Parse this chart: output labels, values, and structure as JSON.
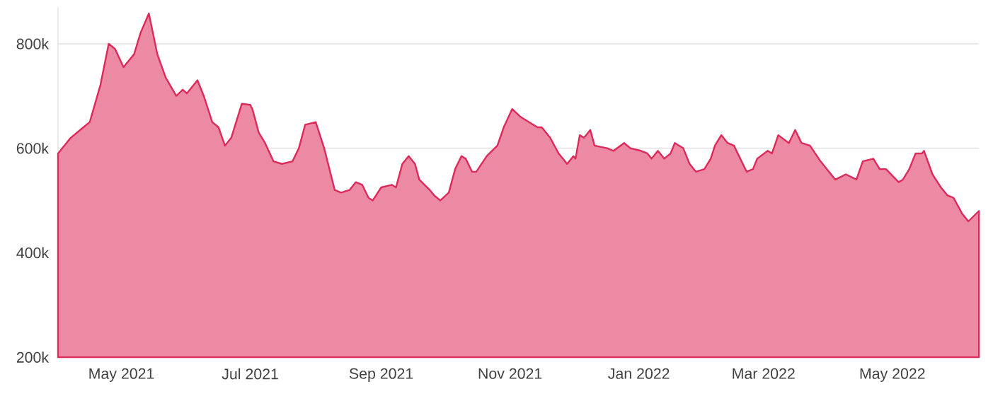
{
  "chart_data": {
    "type": "area",
    "xlim": [
      "2021-04-01",
      "2022-06-11"
    ],
    "ylim": [
      200000,
      870000
    ],
    "xticks": [
      {
        "value": "2021-05-01",
        "label": "May 2021"
      },
      {
        "value": "2021-07-01",
        "label": "Jul 2021"
      },
      {
        "value": "2021-09-01",
        "label": "Sep 2021"
      },
      {
        "value": "2021-11-01",
        "label": "Nov 2021"
      },
      {
        "value": "2022-01-01",
        "label": "Jan 2022"
      },
      {
        "value": "2022-03-01",
        "label": "Mar 2022"
      },
      {
        "value": "2022-05-01",
        "label": "May 2022"
      }
    ],
    "yticks": [
      {
        "value": 200000,
        "label": "200k"
      },
      {
        "value": 400000,
        "label": "400k"
      },
      {
        "value": 600000,
        "label": "600k"
      },
      {
        "value": 800000,
        "label": "800k"
      }
    ],
    "grid": "y",
    "x": [
      "2021-04-01",
      "2021-04-07",
      "2021-04-13",
      "2021-04-16",
      "2021-04-21",
      "2021-04-25",
      "2021-04-28",
      "2021-05-02",
      "2021-05-07",
      "2021-05-10",
      "2021-05-14",
      "2021-05-18",
      "2021-05-22",
      "2021-05-27",
      "2021-05-30",
      "2021-06-01",
      "2021-06-06",
      "2021-06-09",
      "2021-06-13",
      "2021-06-16",
      "2021-06-19",
      "2021-06-22",
      "2021-06-27",
      "2021-07-01",
      "2021-07-02",
      "2021-07-05",
      "2021-07-08",
      "2021-07-12",
      "2021-07-16",
      "2021-07-21",
      "2021-07-24",
      "2021-07-27",
      "2021-08-01",
      "2021-08-05",
      "2021-08-10",
      "2021-08-13",
      "2021-08-17",
      "2021-08-20",
      "2021-08-23",
      "2021-08-26",
      "2021-08-28",
      "2021-09-01",
      "2021-09-06",
      "2021-09-08",
      "2021-09-11",
      "2021-09-14",
      "2021-09-17",
      "2021-09-19",
      "2021-09-24",
      "2021-09-26",
      "2021-09-29",
      "2021-10-03",
      "2021-10-06",
      "2021-10-09",
      "2021-10-11",
      "2021-10-14",
      "2021-10-16",
      "2021-10-21",
      "2021-10-26",
      "2021-10-29",
      "2021-11-02",
      "2021-11-06",
      "2021-11-10",
      "2021-11-14",
      "2021-11-16",
      "2021-11-20",
      "2021-11-24",
      "2021-11-26",
      "2021-11-28",
      "2021-12-01",
      "2021-12-02",
      "2021-12-04",
      "2021-12-06",
      "2021-12-09",
      "2021-12-11",
      "2021-12-17",
      "2021-12-20",
      "2021-12-25",
      "2021-12-28",
      "2022-01-02",
      "2022-01-05",
      "2022-01-07",
      "2022-01-10",
      "2022-01-13",
      "2022-01-16",
      "2022-01-18",
      "2022-01-22",
      "2022-01-25",
      "2022-01-28",
      "2022-02-01",
      "2022-02-04",
      "2022-02-06",
      "2022-02-09",
      "2022-02-12",
      "2022-02-15",
      "2022-02-18",
      "2022-02-21",
      "2022-02-24",
      "2022-02-26",
      "2022-03-03",
      "2022-03-05",
      "2022-03-08",
      "2022-03-13",
      "2022-03-16",
      "2022-03-19",
      "2022-03-23",
      "2022-03-28",
      "2022-04-04",
      "2022-04-09",
      "2022-04-14",
      "2022-04-17",
      "2022-04-22",
      "2022-04-25",
      "2022-04-28",
      "2022-05-04",
      "2022-05-06",
      "2022-05-09",
      "2022-05-12",
      "2022-05-15",
      "2022-05-16",
      "2022-05-20",
      "2022-05-24",
      "2022-05-27",
      "2022-05-30",
      "2022-06-03",
      "2022-06-06",
      "2022-06-11"
    ],
    "series": [
      {
        "color": "#dc2a5a",
        "values": [
          590000,
          620000,
          640000,
          650000,
          720000,
          800000,
          790000,
          755000,
          780000,
          820000,
          858000,
          780000,
          735000,
          700000,
          712000,
          705000,
          730000,
          700000,
          650000,
          640000,
          605000,
          620000,
          685000,
          683000,
          675000,
          630000,
          610000,
          575000,
          570000,
          575000,
          600000,
          645000,
          650000,
          600000,
          520000,
          515000,
          520000,
          535000,
          530000,
          505000,
          500000,
          525000,
          530000,
          525000,
          570000,
          585000,
          570000,
          540000,
          520000,
          510000,
          500000,
          515000,
          560000,
          585000,
          580000,
          555000,
          555000,
          585000,
          605000,
          640000,
          675000,
          660000,
          650000,
          640000,
          640000,
          620000,
          590000,
          580000,
          570000,
          585000,
          580000,
          625000,
          620000,
          635000,
          605000,
          600000,
          595000,
          610000,
          600000,
          595000,
          590000,
          580000,
          595000,
          580000,
          590000,
          610000,
          600000,
          570000,
          555000,
          560000,
          580000,
          605000,
          625000,
          610000,
          605000,
          580000,
          555000,
          560000,
          580000,
          595000,
          590000,
          625000,
          610000,
          635000,
          610000,
          605000,
          575000,
          540000,
          550000,
          540000,
          575000,
          580000,
          560000,
          560000,
          535000,
          540000,
          560000,
          590000,
          590000,
          595000,
          550000,
          525000,
          510000,
          505000,
          475000,
          460000,
          480000
        ]
      }
    ]
  }
}
